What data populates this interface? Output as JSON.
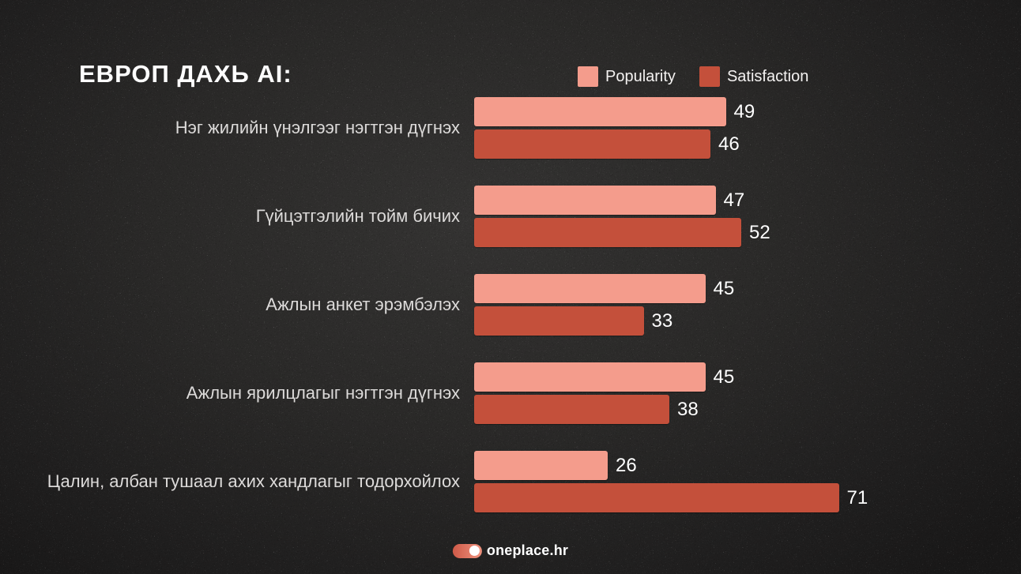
{
  "title": "ЕВРОП ДАХЬ AI:",
  "footer": {
    "brand": "oneplace.hr"
  },
  "colors": {
    "background": "#232221",
    "popularity": "#F49C8C",
    "satisfaction": "#C4503B",
    "category_label": "#DDDBDA",
    "value_label": "#FFFFFF",
    "title": "#FFFFFF"
  },
  "chart_data": {
    "type": "bar",
    "orientation": "horizontal",
    "title": "ЕВРОП ДАХЬ AI:",
    "xlabel": "",
    "ylabel": "",
    "xlim": [
      0,
      80
    ],
    "grid": false,
    "legend_position": "top-right",
    "value_labels": true,
    "categories": [
      "Нэг жилийн үнэлгээг нэгтгэн дүгнэх",
      "Гүйцэтгэлийн тойм бичих",
      "Ажлын анкет эрэмбэлэх",
      "Ажлын ярилцлагыг нэгтгэн дүгнэх",
      "Цалин, албан тушаал ахих хандлагыг тодорхойлох"
    ],
    "series": [
      {
        "name": "Popularity",
        "color": "#F49C8C",
        "values": [
          49,
          47,
          45,
          45,
          26
        ]
      },
      {
        "name": "Satisfaction",
        "color": "#C4503B",
        "values": [
          46,
          52,
          33,
          38,
          71
        ]
      }
    ]
  }
}
